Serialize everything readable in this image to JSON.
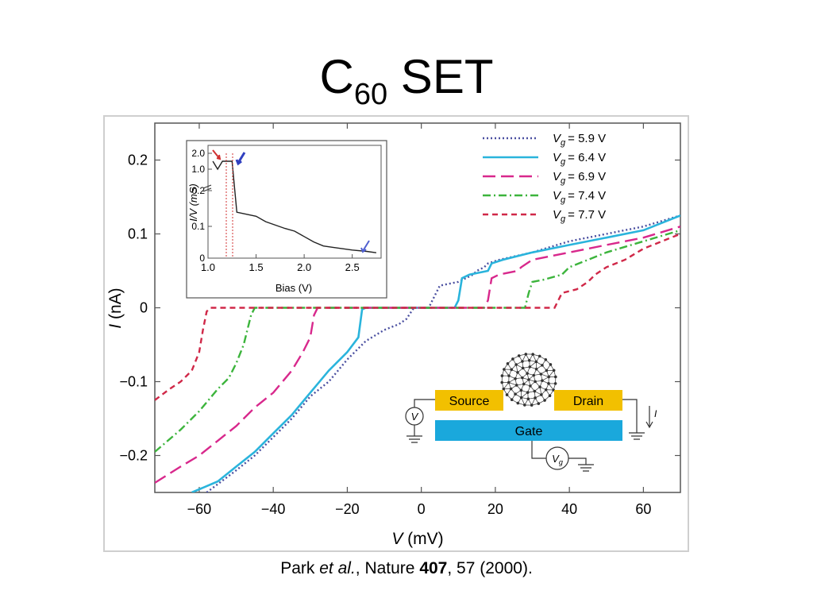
{
  "slide": {
    "title_main": "C",
    "title_sub": "60",
    "title_rest": "SET",
    "citation": {
      "author": "Park",
      "etal": "et al.",
      "journal": ", Nature",
      "volume": "407",
      "rest": ", 57 (2000)."
    }
  },
  "chart_data": [
    {
      "type": "line",
      "xlabel_var": "V",
      "xlabel_unit": "(mV)",
      "ylabel_var": "I",
      "ylabel_unit": "(nA)",
      "xlim": [
        -72,
        70
      ],
      "ylim": [
        -0.25,
        0.25
      ],
      "xticks": [
        -60,
        -40,
        -20,
        0,
        20,
        40,
        60
      ],
      "xtick_labels": [
        "−60",
        "−40",
        "−20",
        "0",
        "20",
        "40",
        "60"
      ],
      "yticks": [
        -0.2,
        -0.1,
        0,
        0.1,
        0.2
      ],
      "ytick_labels": [
        "−0.2",
        "−0.1",
        "0",
        "0.1",
        "0.2"
      ],
      "legend_position": "top-right",
      "series": [
        {
          "name": "V_g = 5.9 V",
          "var": "V",
          "sub": "g",
          "val": "= 5.9 V",
          "color": "#4a4fa0",
          "dash": "2,3",
          "points": [
            [
              -58,
              -0.25
            ],
            [
              -50,
              -0.22
            ],
            [
              -45,
              -0.2
            ],
            [
              -40,
              -0.175
            ],
            [
              -35,
              -0.15
            ],
            [
              -30,
              -0.12
            ],
            [
              -25,
              -0.1
            ],
            [
              -20,
              -0.07
            ],
            [
              -15,
              -0.045
            ],
            [
              -10,
              -0.03
            ],
            [
              -6,
              -0.022
            ],
            [
              -4,
              -0.015
            ],
            [
              -2,
              0
            ],
            [
              2,
              0
            ],
            [
              3,
              0.01
            ],
            [
              5,
              0.03
            ],
            [
              10,
              0.035
            ],
            [
              12,
              0.04
            ],
            [
              14,
              0.045
            ],
            [
              15,
              0.05
            ],
            [
              17,
              0.055
            ],
            [
              18,
              0.06
            ],
            [
              21,
              0.065
            ],
            [
              30,
              0.075
            ],
            [
              40,
              0.09
            ],
            [
              50,
              0.1
            ],
            [
              60,
              0.11
            ],
            [
              70,
              0.125
            ]
          ]
        },
        {
          "name": "V_g = 6.4 V",
          "var": "V",
          "sub": "g",
          "val": "= 6.4 V",
          "color": "#2ab4dc",
          "dash": "",
          "points": [
            [
              -62,
              -0.25
            ],
            [
              -55,
              -0.235
            ],
            [
              -50,
              -0.215
            ],
            [
              -45,
              -0.195
            ],
            [
              -40,
              -0.17
            ],
            [
              -35,
              -0.145
            ],
            [
              -30,
              -0.115
            ],
            [
              -25,
              -0.085
            ],
            [
              -20,
              -0.06
            ],
            [
              -17,
              -0.04
            ],
            [
              -16,
              -0.002
            ],
            [
              -15,
              0
            ],
            [
              9,
              0
            ],
            [
              10,
              0.01
            ],
            [
              11,
              0.04
            ],
            [
              13,
              0.045
            ],
            [
              18,
              0.05
            ],
            [
              19,
              0.06
            ],
            [
              22,
              0.065
            ],
            [
              30,
              0.075
            ],
            [
              40,
              0.085
            ],
            [
              50,
              0.095
            ],
            [
              60,
              0.105
            ],
            [
              70,
              0.125
            ]
          ]
        },
        {
          "name": "V_g = 6.9 V",
          "var": "V",
          "sub": "g",
          "val": "= 6.9 V",
          "color": "#d8288c",
          "dash": "16,7",
          "points": [
            [
              -72,
              -0.237
            ],
            [
              -65,
              -0.215
            ],
            [
              -60,
              -0.2
            ],
            [
              -55,
              -0.18
            ],
            [
              -50,
              -0.16
            ],
            [
              -45,
              -0.135
            ],
            [
              -40,
              -0.115
            ],
            [
              -35,
              -0.085
            ],
            [
              -32,
              -0.06
            ],
            [
              -30,
              -0.04
            ],
            [
              -29,
              -0.01
            ],
            [
              -28,
              0
            ],
            [
              17,
              0
            ],
            [
              18,
              0.01
            ],
            [
              19,
              0.04
            ],
            [
              21,
              0.045
            ],
            [
              26,
              0.05
            ],
            [
              27,
              0.055
            ],
            [
              30,
              0.065
            ],
            [
              40,
              0.075
            ],
            [
              50,
              0.085
            ],
            [
              60,
              0.095
            ],
            [
              70,
              0.11
            ]
          ]
        },
        {
          "name": "V_g = 7.4 V",
          "var": "V",
          "sub": "g",
          "val": "= 7.4 V",
          "color": "#3cb43c",
          "dash": "10,4,2,4",
          "points": [
            [
              -72,
              -0.195
            ],
            [
              -65,
              -0.165
            ],
            [
              -60,
              -0.14
            ],
            [
              -55,
              -0.11
            ],
            [
              -52,
              -0.095
            ],
            [
              -50,
              -0.075
            ],
            [
              -48,
              -0.05
            ],
            [
              -46,
              -0.01
            ],
            [
              -45,
              0
            ],
            [
              28,
              0
            ],
            [
              29,
              0.02
            ],
            [
              30,
              0.035
            ],
            [
              33,
              0.038
            ],
            [
              38,
              0.045
            ],
            [
              40,
              0.055
            ],
            [
              45,
              0.065
            ],
            [
              50,
              0.075
            ],
            [
              60,
              0.09
            ],
            [
              70,
              0.105
            ]
          ]
        },
        {
          "name": "V_g = 7.7 V",
          "var": "V",
          "sub": "g",
          "val": "= 7.7 V",
          "color": "#d02848",
          "dash": "7,5",
          "points": [
            [
              -72,
              -0.125
            ],
            [
              -68,
              -0.11
            ],
            [
              -65,
              -0.1
            ],
            [
              -62,
              -0.085
            ],
            [
              -60,
              -0.06
            ],
            [
              -59,
              -0.03
            ],
            [
              -58,
              -0.005
            ],
            [
              -57,
              0
            ],
            [
              36,
              0
            ],
            [
              37,
              0.01
            ],
            [
              38,
              0.02
            ],
            [
              42,
              0.025
            ],
            [
              45,
              0.035
            ],
            [
              47,
              0.045
            ],
            [
              50,
              0.055
            ],
            [
              55,
              0.065
            ],
            [
              60,
              0.08
            ],
            [
              65,
              0.09
            ],
            [
              70,
              0.1
            ]
          ]
        }
      ]
    },
    {
      "type": "line",
      "xlabel": "Bias (V)",
      "ylabel": "I/V (mS)",
      "xticks": [
        "1.0",
        "1.5",
        "2.0",
        "2.5"
      ],
      "yticks_upper": [
        "2.0",
        "1.0"
      ],
      "yticks_lower": [
        "0.2",
        "0.1",
        "0"
      ],
      "series": [
        {
          "color": "#222222",
          "points": [
            [
              1.05,
              1.5
            ],
            [
              1.1,
              1.0
            ],
            [
              1.15,
              1.5
            ],
            [
              1.2,
              1.5
            ],
            [
              1.25,
              1.5
            ],
            [
              1.3,
              0.17
            ],
            [
              1.5,
              0.155
            ],
            [
              1.6,
              0.135
            ],
            [
              1.8,
              0.11
            ],
            [
              1.9,
              0.1
            ],
            [
              2.0,
              0.08
            ],
            [
              2.1,
              0.06
            ],
            [
              2.2,
              0.045
            ],
            [
              2.3,
              0.04
            ],
            [
              2.5,
              0.03
            ],
            [
              2.65,
              0.025
            ],
            [
              2.75,
              0.02
            ]
          ]
        }
      ]
    }
  ],
  "schematic": {
    "source_label": "Source",
    "drain_label": "Drain",
    "gate_label": "Gate",
    "bias_symbol": "V",
    "gate_symbol_var": "V",
    "gate_symbol_sub": "g",
    "current_label": "I",
    "electrode_color": "#f2c000",
    "gate_color": "#1aa8dc"
  }
}
